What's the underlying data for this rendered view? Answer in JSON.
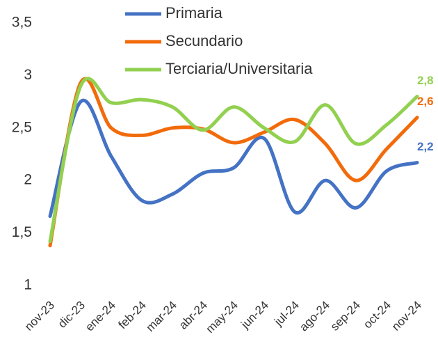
{
  "chart_data": {
    "type": "line",
    "categories": [
      "nov-23",
      "dic-23",
      "ene-24",
      "feb-24",
      "mar-24",
      "abr-24",
      "may-24",
      "jun-24",
      "jul-24",
      "ago-24",
      "sep-24",
      "oct-24",
      "nov-24"
    ],
    "series": [
      {
        "name": "Primaria",
        "color": "#4472c4",
        "values": [
          1.66,
          2.75,
          2.23,
          1.81,
          1.87,
          2.07,
          2.12,
          2.4,
          1.7,
          2.0,
          1.74,
          2.09,
          2.17
        ],
        "value_labels": [
          null,
          null,
          null,
          null,
          null,
          null,
          null,
          null,
          null,
          null,
          null,
          null,
          "2,2"
        ]
      },
      {
        "name": "Secundario",
        "color": "#f26b0b",
        "values": [
          1.38,
          2.93,
          2.5,
          2.43,
          2.5,
          2.49,
          2.36,
          2.46,
          2.58,
          2.35,
          2.0,
          2.3,
          2.6
        ],
        "value_labels": [
          null,
          null,
          null,
          null,
          null,
          null,
          null,
          null,
          null,
          null,
          null,
          null,
          "2,6"
        ]
      },
      {
        "name": "Terciaria/Universitaria",
        "color": "#92d050",
        "values": [
          1.42,
          2.9,
          2.74,
          2.77,
          2.7,
          2.48,
          2.7,
          2.5,
          2.37,
          2.72,
          2.35,
          2.53,
          2.8
        ],
        "value_labels": [
          null,
          null,
          null,
          null,
          null,
          null,
          null,
          null,
          null,
          null,
          null,
          null,
          "2,8"
        ]
      }
    ],
    "ylim": [
      1,
      3.5
    ],
    "yticks": [
      1,
      {
        "value": 1.5,
        "label": "1,5"
      },
      2,
      {
        "value": 2.5,
        "label": "2,5"
      },
      3,
      {
        "value": 3.5,
        "label": "3,5"
      }
    ],
    "grid": false
  }
}
